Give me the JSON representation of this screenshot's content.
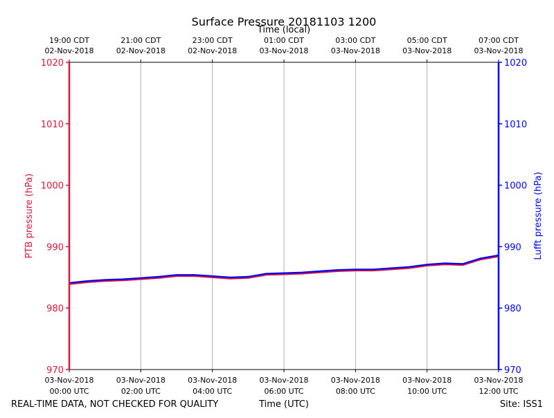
{
  "chart_data": {
    "type": "line",
    "title": "Surface Pressure 20181103 1200",
    "top_axis_label": "Time (local)",
    "xlabel": "Time (UTC)",
    "ylabel_left": "PTB pressure (hPa)",
    "ylabel_right": "Lufft pressure (hPa)",
    "footer_left": "REAL-TIME DATA, NOT CHECKED FOR QUALITY",
    "footer_right": "Site: ISS1",
    "ylim": [
      970,
      1020
    ],
    "y_ticks": [
      "970",
      "980",
      "990",
      "1000",
      "1010",
      "1020"
    ],
    "x_range_hours_utc": [
      0,
      12
    ],
    "grid": "vertical only",
    "colors": {
      "ptb": "#dc143c",
      "lufft": "#0000ff",
      "grid": "#b0b0b0"
    },
    "bottom_ticks": [
      {
        "hour": 0,
        "date": "03-Nov-2018",
        "time": "00:00 UTC"
      },
      {
        "hour": 2,
        "date": "03-Nov-2018",
        "time": "02:00 UTC"
      },
      {
        "hour": 4,
        "date": "03-Nov-2018",
        "time": "04:00 UTC"
      },
      {
        "hour": 6,
        "date": "03-Nov-2018",
        "time": "06:00 UTC"
      },
      {
        "hour": 8,
        "date": "03-Nov-2018",
        "time": "08:00 UTC"
      },
      {
        "hour": 10,
        "date": "03-Nov-2018",
        "time": "10:00 UTC"
      },
      {
        "hour": 12,
        "date": "03-Nov-2018",
        "time": "12:00 UTC"
      }
    ],
    "top_ticks": [
      {
        "hour": 0,
        "time": "19:00 CDT",
        "date": "02-Nov-2018"
      },
      {
        "hour": 2,
        "time": "21:00 CDT",
        "date": "02-Nov-2018"
      },
      {
        "hour": 4,
        "time": "23:00 CDT",
        "date": "02-Nov-2018"
      },
      {
        "hour": 6,
        "time": "01:00 CDT",
        "date": "03-Nov-2018"
      },
      {
        "hour": 8,
        "time": "03:00 CDT",
        "date": "03-Nov-2018"
      },
      {
        "hour": 10,
        "time": "05:00 CDT",
        "date": "03-Nov-2018"
      },
      {
        "hour": 12,
        "time": "07:00 CDT",
        "date": "03-Nov-2018"
      }
    ],
    "series": [
      {
        "name": "PTB pressure (hPa)",
        "axis": "left",
        "x": [
          0,
          0.5,
          1,
          1.5,
          2,
          2.5,
          3,
          3.5,
          4,
          4.5,
          5,
          5.5,
          6,
          6.5,
          7,
          7.5,
          8,
          8.5,
          9,
          9.5,
          10,
          10.5,
          11,
          11.5,
          12
        ],
        "y": [
          983.9,
          984.2,
          984.4,
          984.5,
          984.7,
          984.9,
          985.2,
          985.2,
          985.0,
          984.8,
          984.9,
          985.4,
          985.5,
          985.6,
          985.8,
          986.0,
          986.1,
          986.1,
          986.3,
          986.5,
          986.9,
          987.1,
          987.0,
          987.9,
          988.4
        ]
      },
      {
        "name": "Lufft pressure (hPa)",
        "axis": "right",
        "x": [
          0,
          0.5,
          1,
          1.5,
          2,
          2.5,
          3,
          3.5,
          4,
          4.5,
          5,
          5.5,
          6,
          6.5,
          7,
          7.5,
          8,
          8.5,
          9,
          9.5,
          10,
          10.5,
          11,
          11.5,
          12
        ],
        "y": [
          984.1,
          984.4,
          984.6,
          984.7,
          984.9,
          985.1,
          985.4,
          985.4,
          985.2,
          985.0,
          985.1,
          985.6,
          985.7,
          985.8,
          986.0,
          986.2,
          986.3,
          986.3,
          986.5,
          986.7,
          987.1,
          987.3,
          987.2,
          988.1,
          988.6
        ]
      }
    ]
  }
}
